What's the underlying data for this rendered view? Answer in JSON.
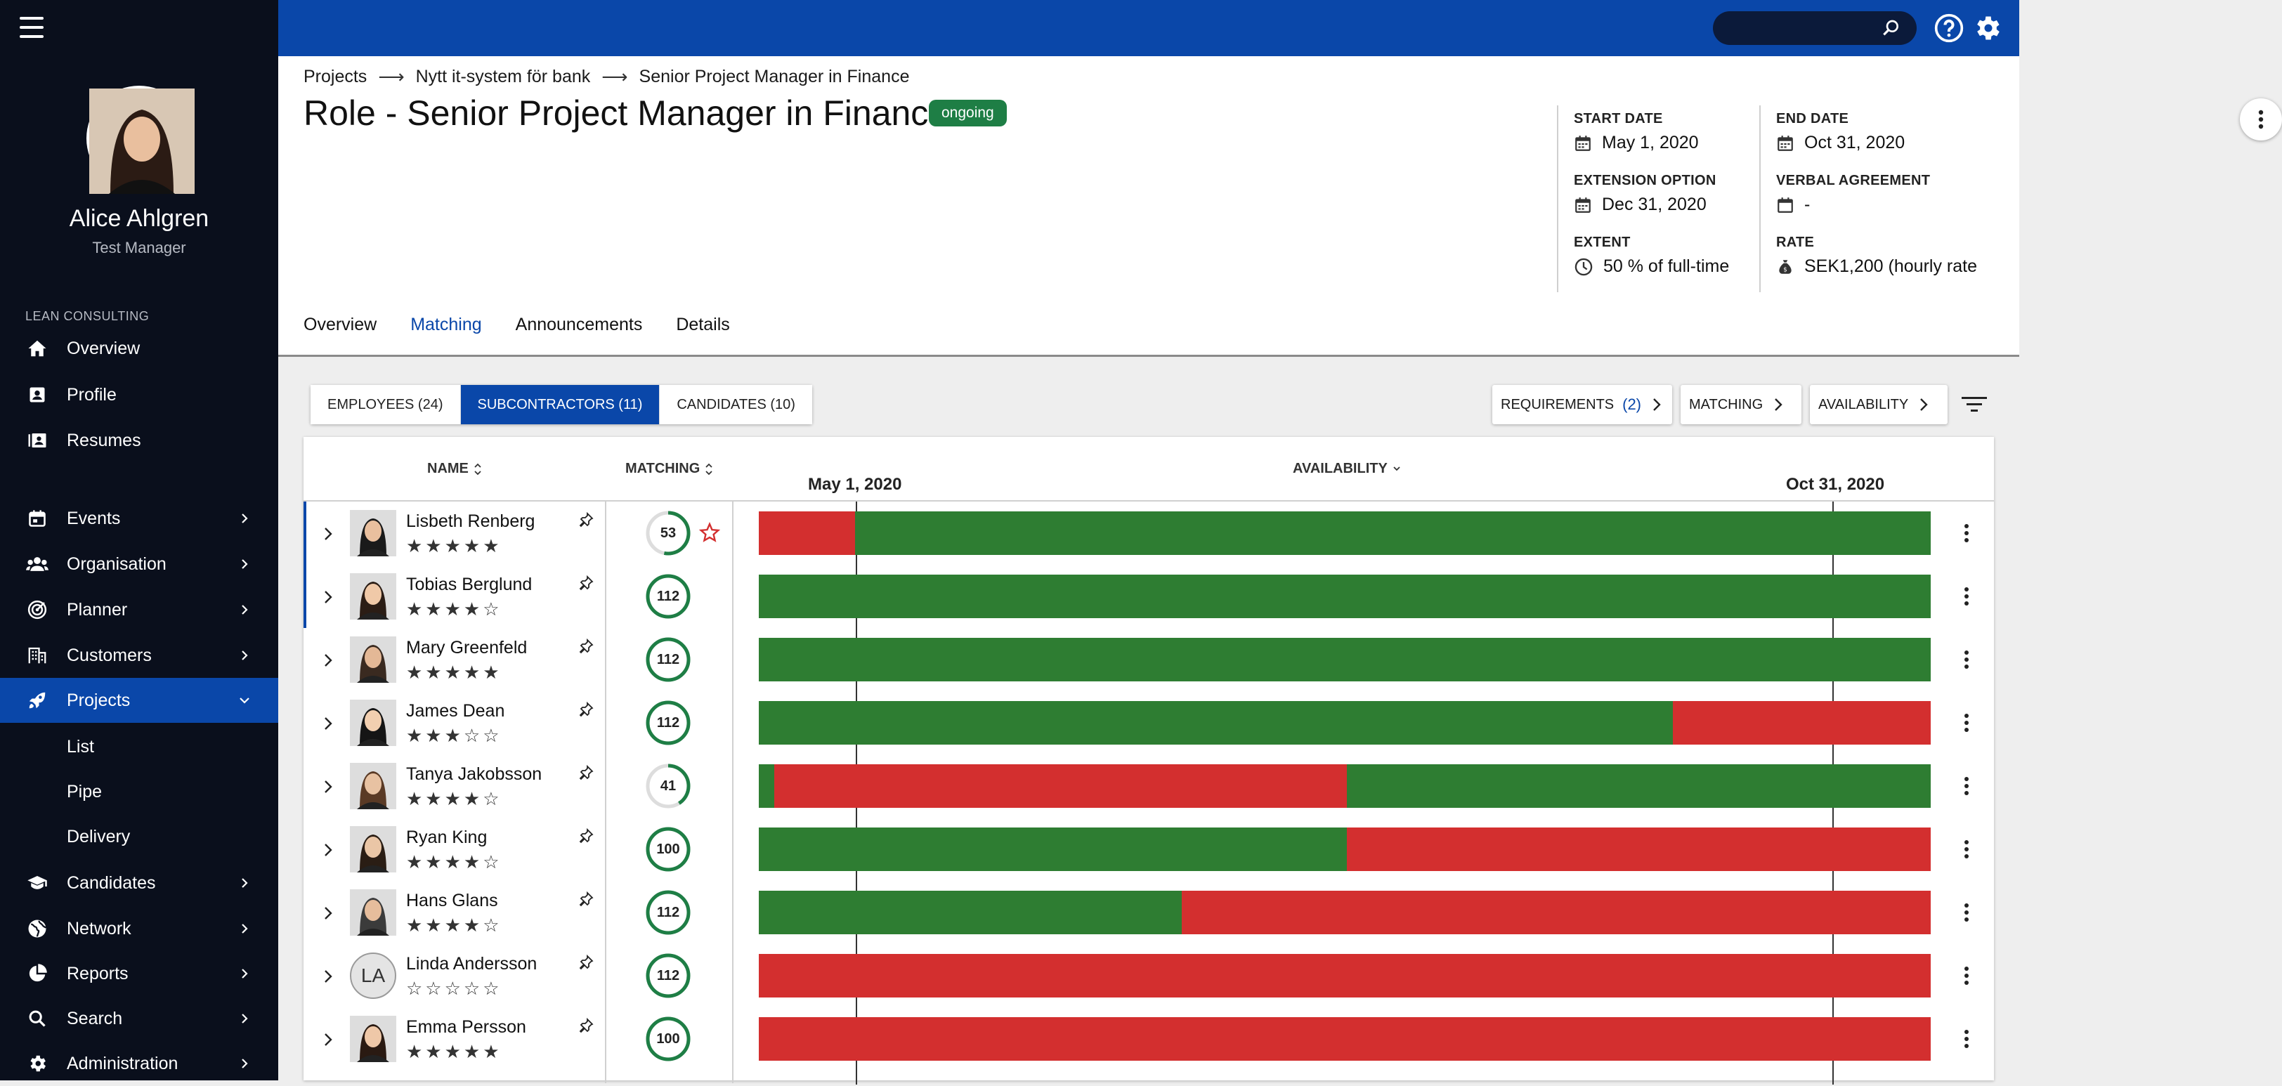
{
  "user": {
    "name": "Alice Ahlgren",
    "role": "Test Manager"
  },
  "sidebar": {
    "org_label": "LEAN CONSULTING",
    "items": [
      {
        "label": "Overview",
        "icon": "home-icon"
      },
      {
        "label": "Profile",
        "icon": "profile-icon"
      },
      {
        "label": "Resumes",
        "icon": "resumes-icon"
      },
      {
        "label": "Events",
        "icon": "calendar-icon"
      },
      {
        "label": "Organisation",
        "icon": "people-icon"
      },
      {
        "label": "Planner",
        "icon": "radar-icon"
      },
      {
        "label": "Customers",
        "icon": "building-icon"
      },
      {
        "label": "Projects",
        "icon": "rocket-icon"
      },
      {
        "label": "Candidates",
        "icon": "graduation-cap-icon"
      },
      {
        "label": "Network",
        "icon": "globe-icon"
      },
      {
        "label": "Reports",
        "icon": "pie-chart-icon"
      },
      {
        "label": "Search",
        "icon": "search-icon"
      },
      {
        "label": "Administration",
        "icon": "gear-icon"
      }
    ],
    "sub_items": [
      "List",
      "Pipe",
      "Delivery"
    ]
  },
  "breadcrumb": [
    "Projects",
    "Nytt it-system för bank",
    "Senior Project Manager in Finance"
  ],
  "page": {
    "title": "Role - Senior Project Manager in Finance",
    "status": "ongoing"
  },
  "info": {
    "start_date": {
      "label": "START DATE",
      "value": "May 1, 2020"
    },
    "end_date": {
      "label": "END DATE",
      "value": "Oct 31, 2020"
    },
    "extension": {
      "label": "EXTENSION OPTION",
      "value": "Dec 31, 2020"
    },
    "verbal": {
      "label": "VERBAL AGREEMENT",
      "value": "-"
    },
    "extent": {
      "label": "EXTENT",
      "value": "50 % of full-time"
    },
    "rate": {
      "label": "RATE",
      "value": "SEK1,200 (hourly rate"
    }
  },
  "tabs": [
    "Overview",
    "Matching",
    "Announcements",
    "Details"
  ],
  "filters": {
    "segments": [
      "EMPLOYEES (24)",
      "SUBCONTRACTORS (11)",
      "CANDIDATES (10)"
    ],
    "requirements": "REQUIREMENTS",
    "requirements_count": "(2)",
    "matching": "MATCHING",
    "availability": "AVAILABILITY"
  },
  "table": {
    "col_name": "NAME",
    "col_matching": "MATCHING",
    "col_availability": "AVAILABILITY",
    "date_start": "May 1, 2020",
    "date_end": "Oct 31, 2020",
    "rows": [
      {
        "name": "Lisbeth Renberg",
        "stars": 5,
        "score": "53",
        "pct": 0.53,
        "favorite": true,
        "selected": true,
        "avail": [
          [
            "r",
            8.2
          ],
          [
            "g",
            91.8
          ]
        ]
      },
      {
        "name": "Tobias Berglund",
        "stars": 4,
        "score": "112",
        "pct": 1,
        "favorite": false,
        "selected": true,
        "avail": [
          [
            "g",
            100
          ]
        ]
      },
      {
        "name": "Mary Greenfeld",
        "stars": 5,
        "score": "112",
        "pct": 1,
        "favorite": false,
        "selected": false,
        "avail": [
          [
            "g",
            100
          ]
        ]
      },
      {
        "name": "James Dean",
        "stars": 3,
        "score": "112",
        "pct": 1,
        "favorite": false,
        "selected": false,
        "avail": [
          [
            "g",
            78
          ],
          [
            "r",
            22
          ]
        ]
      },
      {
        "name": "Tanya Jakobsson",
        "stars": 4,
        "score": "41",
        "pct": 0.41,
        "favorite": false,
        "selected": false,
        "avail": [
          [
            "g",
            1.3
          ],
          [
            "r",
            48.9
          ],
          [
            "g",
            49.8
          ]
        ]
      },
      {
        "name": "Ryan King",
        "stars": 4,
        "score": "100",
        "pct": 1,
        "favorite": false,
        "selected": false,
        "avail": [
          [
            "g",
            50.2
          ],
          [
            "r",
            49.8
          ]
        ]
      },
      {
        "name": "Hans Glans",
        "stars": 4,
        "score": "112",
        "pct": 1,
        "favorite": false,
        "selected": false,
        "avail": [
          [
            "g",
            36.1
          ],
          [
            "r",
            63.9
          ]
        ]
      },
      {
        "name": "Linda Andersson",
        "stars": 0,
        "score": "112",
        "pct": 1,
        "favorite": false,
        "selected": false,
        "initials": "LA",
        "avail": [
          [
            "r",
            100
          ]
        ]
      },
      {
        "name": "Emma Persson",
        "stars": 5,
        "score": "100",
        "pct": 1,
        "favorite": false,
        "selected": false,
        "avail": [
          [
            "r",
            100
          ]
        ]
      }
    ]
  },
  "colors": {
    "brand": "#0a47a9",
    "green": "#2e7d32",
    "red": "#d32f2f",
    "sidebar": "#0a0f1c"
  }
}
